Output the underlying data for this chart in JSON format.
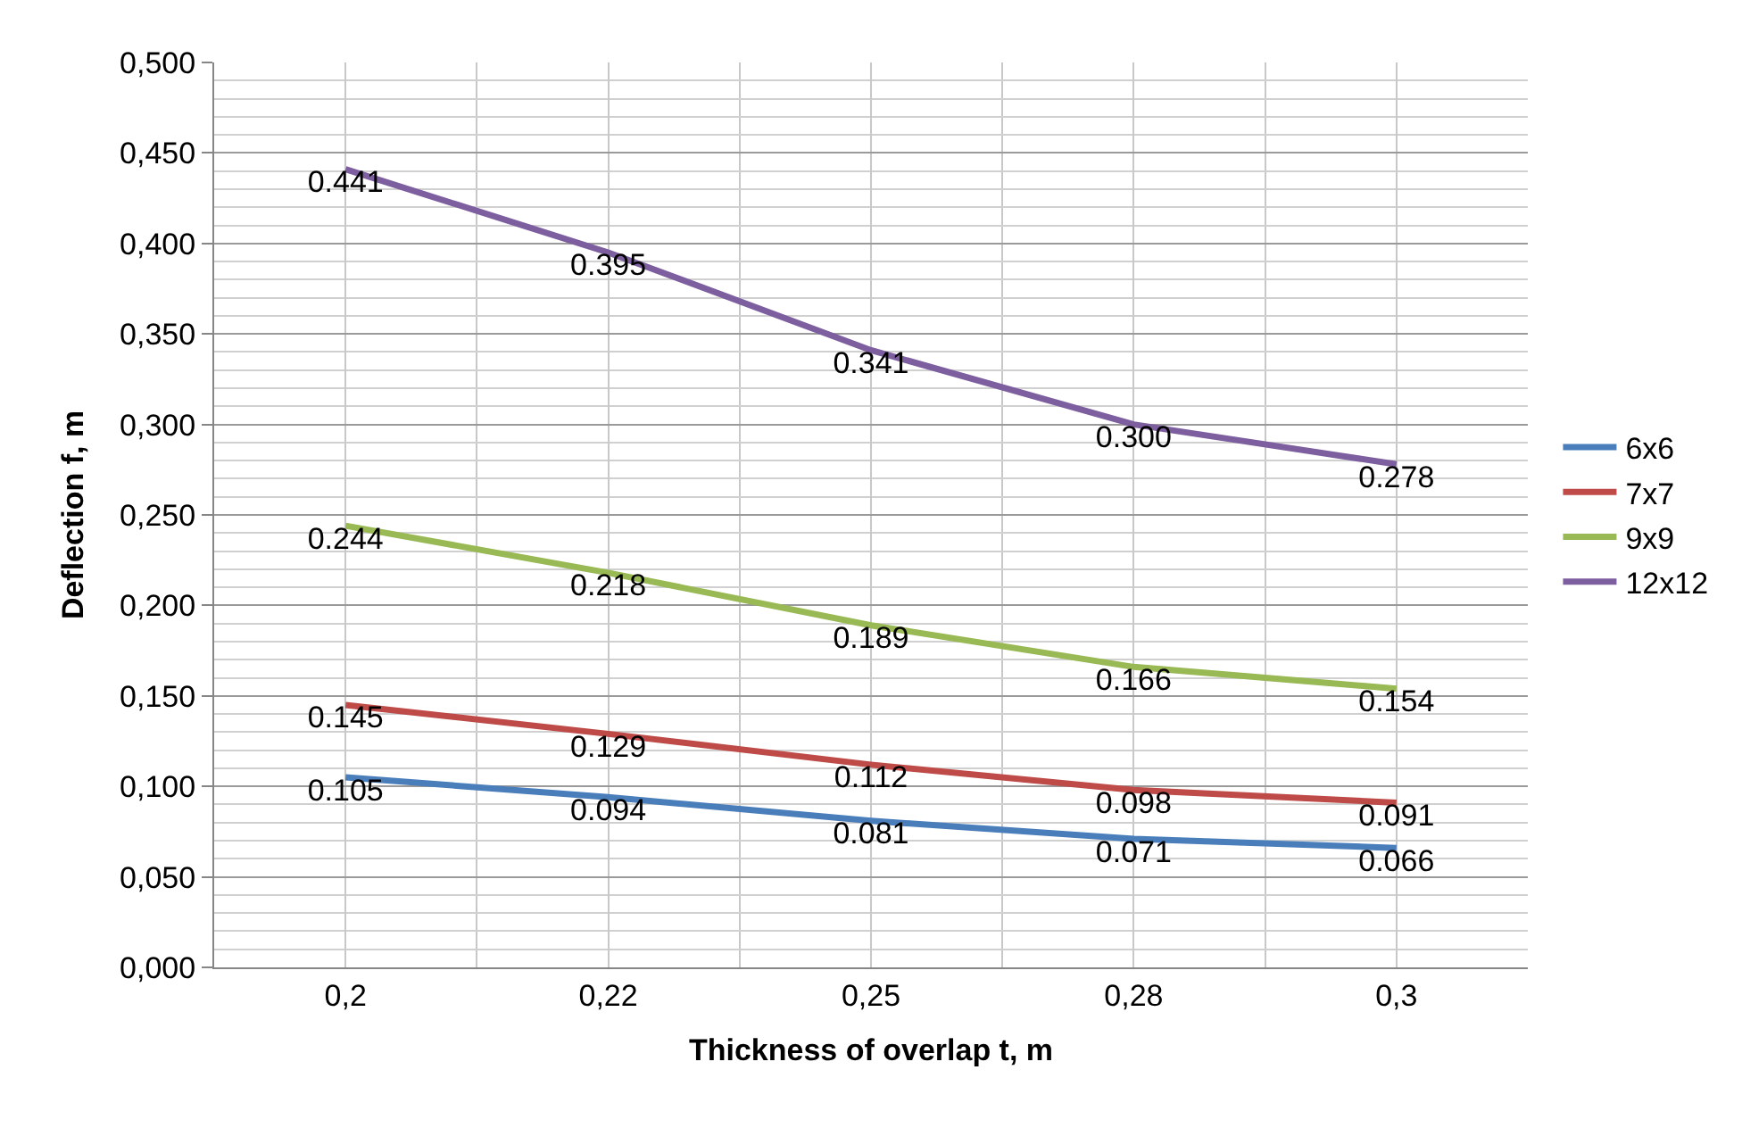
{
  "chart_data": {
    "type": "line",
    "xlabel": "Thickness of overlap t, m",
    "ylabel": "Deflection f, m",
    "categories": [
      "0,2",
      "0,22",
      "0,25",
      "0,28",
      "0,3"
    ],
    "series": [
      {
        "name": "6x6",
        "color": "#4a7ebb",
        "values": [
          0.105,
          0.094,
          0.081,
          0.071,
          0.066
        ],
        "value_labels": [
          "0.105",
          "0.094",
          "0.081",
          "0.071",
          "0.066"
        ]
      },
      {
        "name": "7x7",
        "color": "#be4b48",
        "values": [
          0.145,
          0.129,
          0.112,
          0.098,
          0.091
        ],
        "value_labels": [
          "0.145",
          "0.129",
          "0.112",
          "0.098",
          "0.091"
        ]
      },
      {
        "name": "9x9",
        "color": "#98b954",
        "values": [
          0.244,
          0.218,
          0.189,
          0.166,
          0.154
        ],
        "value_labels": [
          "0.244",
          "0.218",
          "0.189",
          "0.166",
          "0.154"
        ]
      },
      {
        "name": "12x12",
        "color": "#7d5fa0",
        "values": [
          0.441,
          0.395,
          0.341,
          0.3,
          0.278
        ],
        "value_labels": [
          "0.441",
          "0.395",
          "0.341",
          "0.300",
          "0.278"
        ]
      }
    ],
    "ylim": [
      0,
      0.5
    ],
    "yticks": [
      {
        "value": 0,
        "label": "0,000"
      },
      {
        "value": 0.05,
        "label": "0,050"
      },
      {
        "value": 0.1,
        "label": "0,100"
      },
      {
        "value": 0.15,
        "label": "0,150"
      },
      {
        "value": 0.2,
        "label": "0,200"
      },
      {
        "value": 0.25,
        "label": "0,250"
      },
      {
        "value": 0.3,
        "label": "0,300"
      },
      {
        "value": 0.35,
        "label": "0,350"
      },
      {
        "value": 0.4,
        "label": "0,400"
      },
      {
        "value": 0.45,
        "label": "0,450"
      },
      {
        "value": 0.5,
        "label": "0,500"
      }
    ],
    "grid": true,
    "legend": "right",
    "marker": "none",
    "line_style": "solid"
  }
}
